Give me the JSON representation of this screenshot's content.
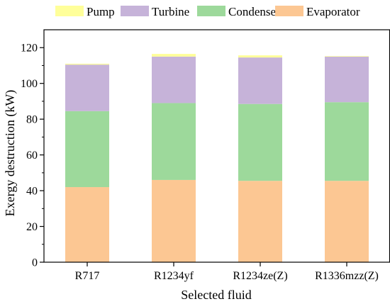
{
  "chart_data": {
    "type": "bar",
    "stacked": true,
    "xlabel": "Selected fluid",
    "ylabel": "Exergy destruction (kW)",
    "categories": [
      "R717",
      "R1234yf",
      "R1234ze(Z)",
      "R1336mzz(Z)"
    ],
    "ylim": [
      0,
      130
    ],
    "yticks": [
      "0",
      "20",
      "40",
      "60",
      "80",
      "100",
      "120"
    ],
    "grid": false,
    "legend_position": "top",
    "series": [
      {
        "name": "Evaporator",
        "color": "#fcc793",
        "values": [
          42,
          46,
          45.5,
          45.5
        ]
      },
      {
        "name": "Condenser",
        "color": "#9dd99b",
        "values": [
          42.5,
          43,
          43,
          44
        ]
      },
      {
        "name": "Turbine",
        "color": "#c6b3d9",
        "values": [
          26,
          26,
          26,
          25.5
        ]
      },
      {
        "name": "Pump",
        "color": "#ffff9a",
        "values": [
          0.5,
          1.5,
          1.2,
          0.3
        ]
      }
    ],
    "legend_order": [
      "Pump",
      "Turbine",
      "Condenser",
      "Evaporator"
    ]
  }
}
